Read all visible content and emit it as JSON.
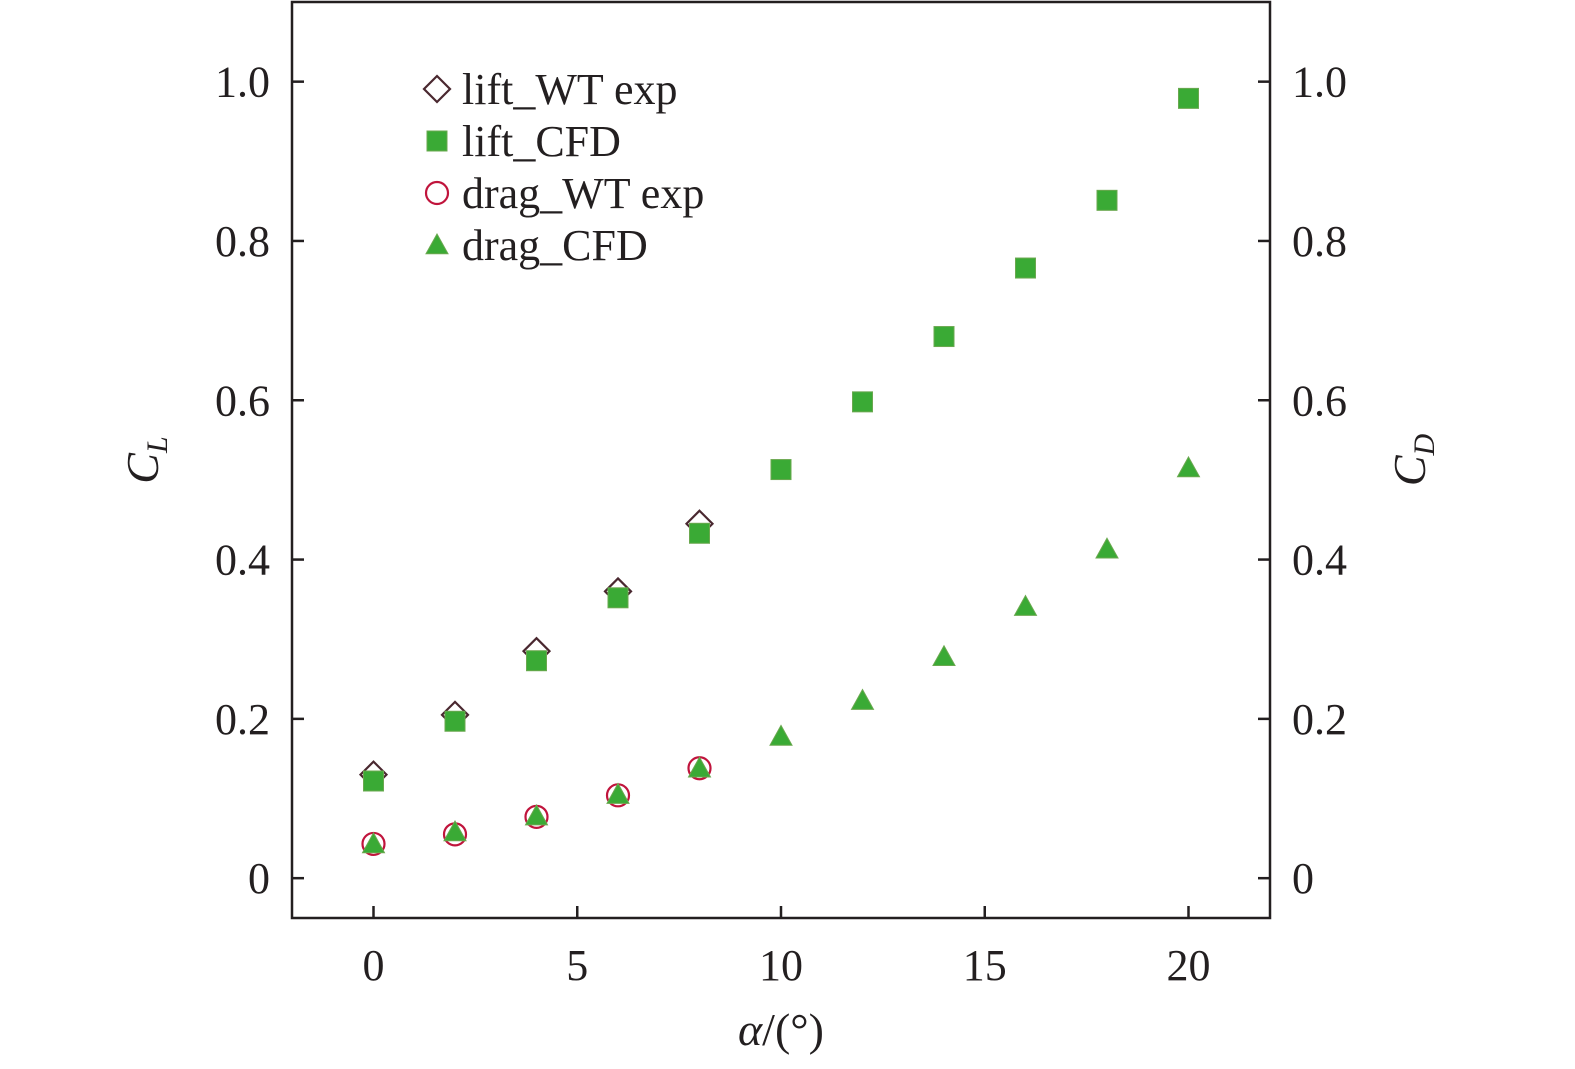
{
  "chart_data": {
    "type": "scatter",
    "xlabel": "α/(°)",
    "ylabel": "C_L",
    "ylabel_parts": {
      "main": "C",
      "sub": "L"
    },
    "y2label": "C_D",
    "y2label_parts": {
      "main": "C",
      "sub": "D"
    },
    "xlim": [
      -2,
      22
    ],
    "ylim": [
      -0.05,
      1.1
    ],
    "y2lim": [
      -0.05,
      1.1
    ],
    "x_ticks": [
      0,
      5,
      10,
      15,
      20
    ],
    "x_tick_labels": [
      "0",
      "5",
      "10",
      "15",
      "20"
    ],
    "y_ticks": [
      0,
      0.2,
      0.4,
      0.6,
      0.8,
      1.0
    ],
    "y_tick_labels": [
      "0",
      "0.2",
      "0.4",
      "0.6",
      "0.8",
      "1.0"
    ],
    "y2_ticks": [
      0,
      0.2,
      0.4,
      0.6,
      0.8,
      1.0
    ],
    "y2_tick_labels": [
      "0",
      "0.2",
      "0.4",
      "0.6",
      "0.8",
      "1.0"
    ],
    "grid": false,
    "legend_position": "top-left",
    "series": [
      {
        "name": "lift_WT exp",
        "marker": "diamond-open",
        "color": "#4a2830",
        "x": [
          0,
          2,
          4,
          6,
          8
        ],
        "y": [
          0.13,
          0.205,
          0.285,
          0.36,
          0.445
        ]
      },
      {
        "name": "lift_CFD",
        "marker": "square-filled",
        "color": "#3aaa35",
        "x": [
          0,
          2,
          4,
          6,
          8,
          10,
          12,
          14,
          16,
          18,
          20
        ],
        "y": [
          0.122,
          0.197,
          0.273,
          0.352,
          0.433,
          0.513,
          0.598,
          0.68,
          0.766,
          0.851,
          0.979
        ]
      },
      {
        "name": "drag_WT exp",
        "marker": "circle-open",
        "color": "#c0143c",
        "x": [
          0,
          2,
          4,
          6,
          8
        ],
        "y": [
          0.043,
          0.055,
          0.077,
          0.104,
          0.138
        ]
      },
      {
        "name": "drag_CFD",
        "marker": "triangle-filled",
        "color": "#3aaa35",
        "x": [
          0,
          2,
          4,
          6,
          8,
          10,
          12,
          14,
          16,
          18,
          20
        ],
        "y": [
          0.043,
          0.058,
          0.078,
          0.105,
          0.138,
          0.178,
          0.223,
          0.278,
          0.341,
          0.413,
          0.515
        ]
      }
    ]
  }
}
